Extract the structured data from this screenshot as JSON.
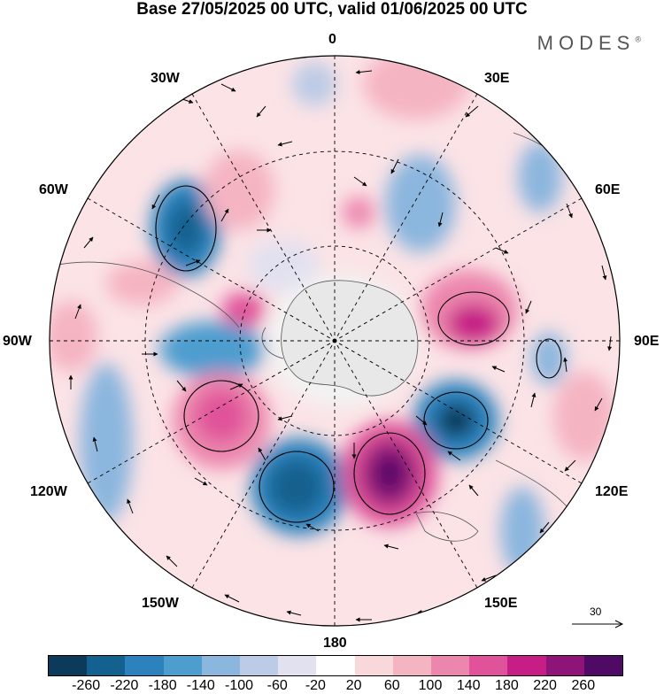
{
  "title": "Base 27/05/2025 00 UTC, valid 01/06/2025 00 UTC",
  "brand": "MODES",
  "brand_mark": "®",
  "longitude_labels": [
    {
      "key": "lon-0",
      "text": "0"
    },
    {
      "key": "lon-30e",
      "text": "30E"
    },
    {
      "key": "lon-60e",
      "text": "60E"
    },
    {
      "key": "lon-90e",
      "text": "90E"
    },
    {
      "key": "lon-120e",
      "text": "120E"
    },
    {
      "key": "lon-150e",
      "text": "150E"
    },
    {
      "key": "lon-180",
      "text": "180"
    },
    {
      "key": "lon-150w",
      "text": "150W"
    },
    {
      "key": "lon-120w",
      "text": "120W"
    },
    {
      "key": "lon-90w",
      "text": "90W"
    },
    {
      "key": "lon-60w",
      "text": "60W"
    },
    {
      "key": "lon-30w",
      "text": "30W"
    }
  ],
  "reference_vector": "30",
  "colorbar": {
    "colors": [
      "#0c3a5a",
      "#14608e",
      "#2b82bd",
      "#4e9dcf",
      "#8bb6de",
      "#bccbe6",
      "#e2e1f0",
      "#ffffff",
      "#f9d8dc",
      "#f5b4c2",
      "#ec86ad",
      "#e0529a",
      "#c61d86",
      "#8e1478",
      "#4f0a66"
    ],
    "ticks": [
      "-260",
      "-220",
      "-180",
      "-140",
      "-100",
      "-60",
      "-20",
      "20",
      "60",
      "100",
      "140",
      "180",
      "220",
      "260"
    ]
  },
  "projection": "south-polar-stereographic"
}
